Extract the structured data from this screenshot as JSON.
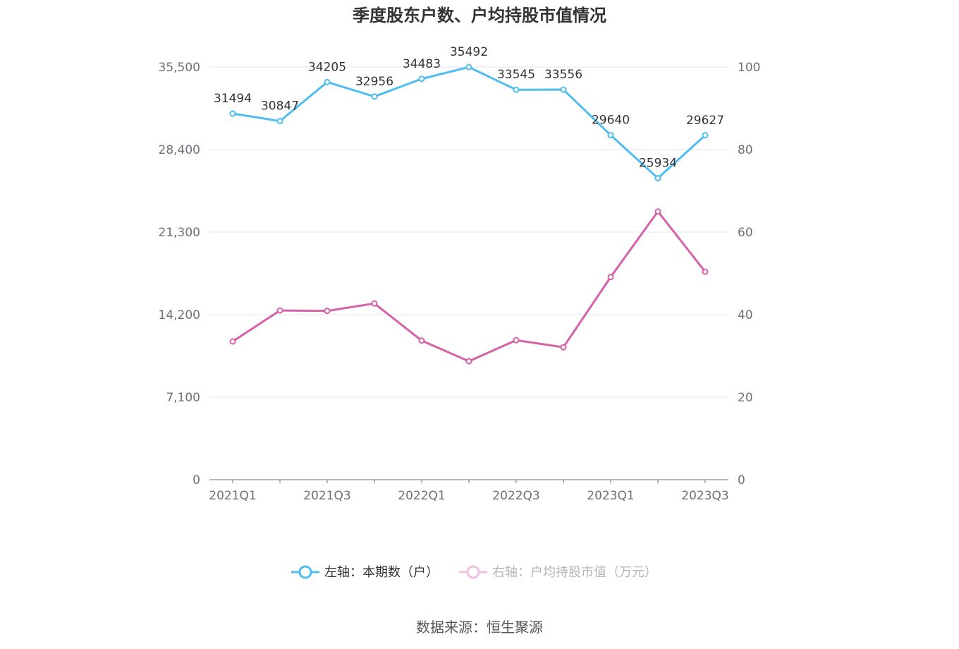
{
  "chart_data": {
    "type": "line",
    "title": "季度股东户数、户均持股市值情况",
    "categories": [
      "2021Q1",
      "2021Q2",
      "2021Q3",
      "2021Q4",
      "2022Q1",
      "2022Q2",
      "2022Q3",
      "2022Q4",
      "2023Q1",
      "2023Q2",
      "2023Q3"
    ],
    "x_tick_labels": [
      "2021Q1",
      "2021Q3",
      "2022Q1",
      "2022Q3",
      "2023Q1",
      "2023Q3"
    ],
    "left_axis": {
      "ylim": [
        0,
        35500
      ],
      "ticks": [
        "0",
        "7,100",
        "14,200",
        "21,300",
        "28,400",
        "35,500"
      ]
    },
    "right_axis": {
      "ylim": [
        0,
        100
      ],
      "ticks": [
        "0",
        "20",
        "40",
        "60",
        "80",
        "100"
      ]
    },
    "grid": true,
    "legend_position": "bottom",
    "series": [
      {
        "name": "左轴：本期数（户）",
        "axis": "left",
        "color": "#4fbdf2",
        "values": [
          31494,
          30847,
          34205,
          32956,
          34483,
          35492,
          33545,
          33556,
          29640,
          25934,
          29627
        ],
        "labels": [
          "31494",
          "30847",
          "34205",
          "32956",
          "34483",
          "35492",
          "33545",
          "33556",
          "29640",
          "25934",
          "29627"
        ]
      },
      {
        "name": "右轴：户均持股市值（万元）",
        "axis": "right",
        "color": "#d462a8",
        "values": [
          33.5,
          41.0,
          40.9,
          42.7,
          33.7,
          28.7,
          33.8,
          32.1,
          49.1,
          65.0,
          50.4
        ]
      }
    ]
  },
  "source": "数据来源：恒生聚源"
}
